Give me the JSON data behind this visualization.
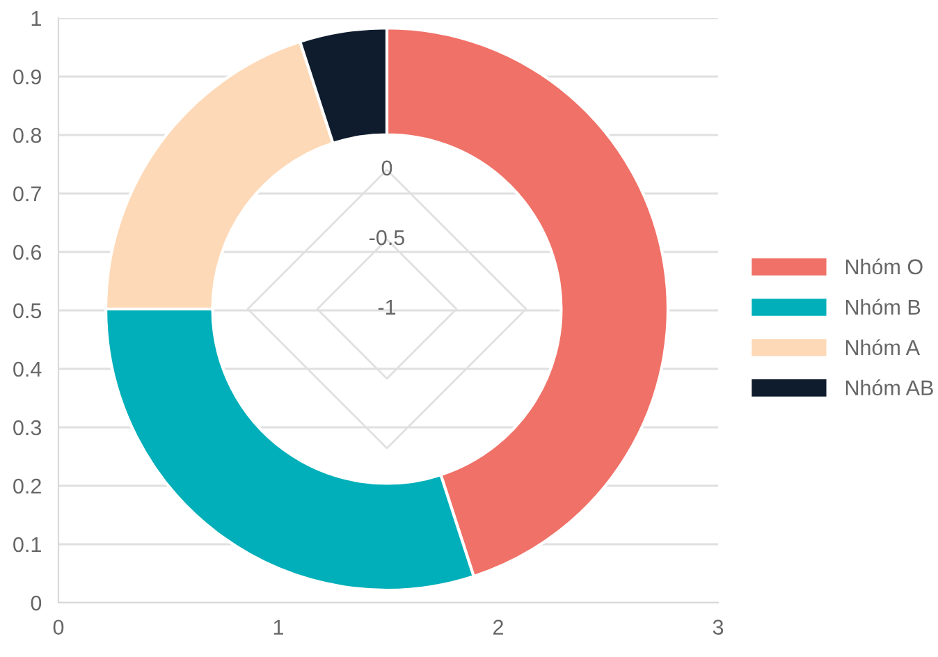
{
  "chart_data": [
    {
      "type": "scatter",
      "xlim": [
        0,
        3
      ],
      "xticks": [
        0,
        1,
        2,
        3
      ],
      "ylim": [
        0,
        1
      ],
      "yticks": [
        0,
        0.1,
        0.2,
        0.3,
        0.4,
        0.5,
        0.6,
        0.7,
        0.8,
        0.9,
        1
      ],
      "grid": "y"
    },
    {
      "type": "donut",
      "categories": [
        "Nhóm O",
        "Nhóm B",
        "Nhóm A",
        "Nhóm AB"
      ],
      "values": [
        45,
        30,
        20,
        5
      ],
      "colors": [
        "#f07167",
        "#00afb9",
        "#fed9b7",
        "#0f1c2e"
      ],
      "legend": "right"
    },
    {
      "type": "other",
      "annotations": [
        "0",
        "-0.5",
        "-1"
      ]
    }
  ]
}
